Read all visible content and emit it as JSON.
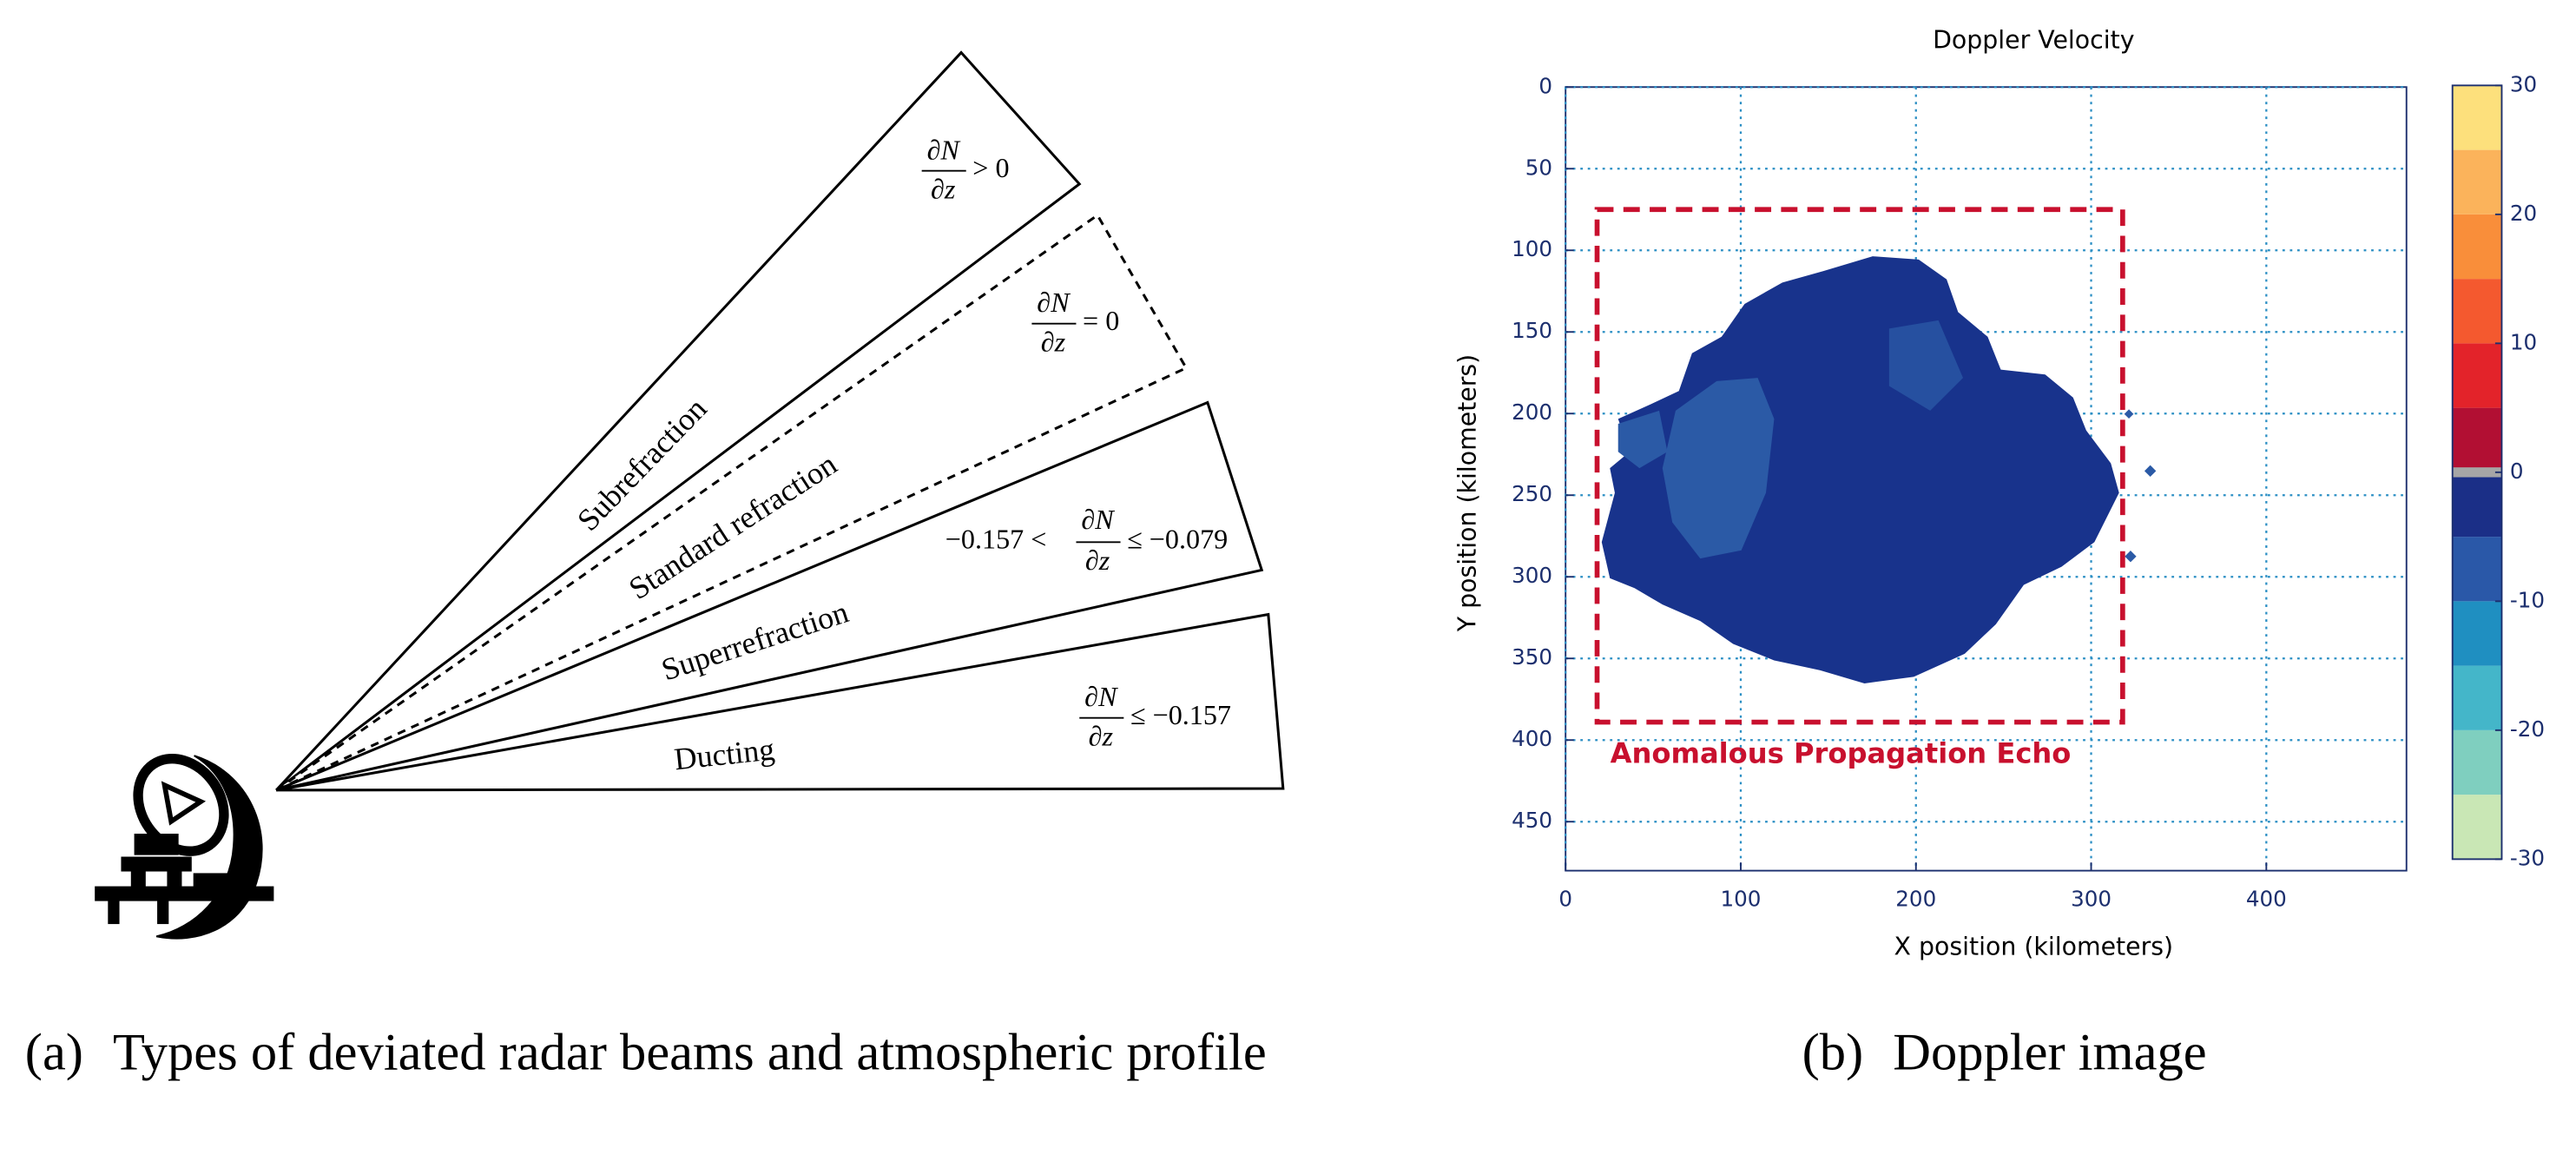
{
  "figure": {
    "panel_a": {
      "caption_label": "(a)",
      "caption": "Types of deviated radar beams and atmospheric profile",
      "beams": [
        {
          "label": "Subrefraction",
          "formula": {
            "numerator": "∂N",
            "denominator": "∂z",
            "suffix": "> 0"
          }
        },
        {
          "label": "Standard refraction",
          "formula": {
            "numerator": "∂N",
            "denominator": "∂z",
            "suffix": "= 0"
          }
        },
        {
          "label": "Superrefraction",
          "formula": {
            "prefix": "−0.157 <",
            "numerator": "∂N",
            "denominator": "∂z",
            "suffix": "≤ −0.079"
          }
        },
        {
          "label": "Ducting",
          "formula": {
            "numerator": "∂N",
            "denominator": "∂z",
            "suffix": "≤ −0.157"
          }
        }
      ]
    },
    "panel_b": {
      "caption_label": "(b)",
      "caption": "Doppler image"
    }
  },
  "chart_data": {
    "type": "heatmap",
    "title": "Doppler Velocity",
    "xlabel": "X position (kilometers)",
    "ylabel": "Y position (kilometers)",
    "xlim": [
      0,
      480
    ],
    "ylim": [
      0,
      480
    ],
    "y_inverted": true,
    "xticks": [
      0,
      100,
      200,
      300,
      400
    ],
    "yticks": [
      0,
      50,
      100,
      150,
      200,
      250,
      300,
      350,
      400,
      450
    ],
    "grid": true,
    "grid_color": "#2b8fc4",
    "colorbar": {
      "clim": [
        -30,
        30
      ],
      "ticks": [
        -30,
        -20,
        -10,
        0,
        10,
        20,
        30
      ],
      "colors": [
        "#c9e7b5",
        "#7fcfbf",
        "#44b6c9",
        "#1f8fc1",
        "#2a58a8",
        "#1b2f87",
        "#b20f33",
        "#e3232a",
        "#f4592f",
        "#f98e3a",
        "#fbb35b",
        "#fde07c"
      ],
      "zero_color": "#a6a6a6"
    },
    "annotation": {
      "text": "Anomalous Propagation Echo",
      "xlim": [
        18,
        318
      ],
      "ylim": [
        75,
        389
      ],
      "color": "#c8102e"
    }
  }
}
